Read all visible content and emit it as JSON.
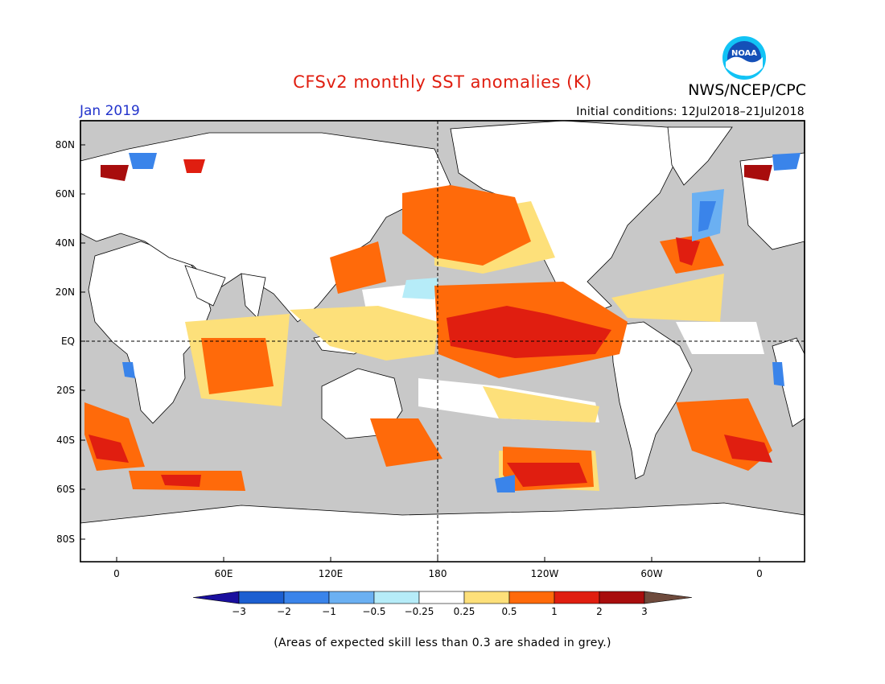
{
  "title": "CFSv2 monthly SST anomalies (K)",
  "agency": "NWS/NCEP/CPC",
  "logo_text": "NOAA",
  "valid_month": "Jan 2019",
  "initial_conditions": "Initial conditions: 12Jul2018–21Jul2018",
  "lat_labels": [
    "80N",
    "60N",
    "40N",
    "20N",
    "EQ",
    "20S",
    "40S",
    "60S",
    "80S"
  ],
  "lon_labels": [
    "0",
    "60E",
    "120E",
    "180",
    "120W",
    "60W",
    "0"
  ],
  "colorbar": {
    "labels": [
      "−3",
      "−2",
      "−1",
      "−0.5",
      "−0.25",
      "0.25",
      "0.5",
      "1",
      "2",
      "3"
    ],
    "colors": [
      "#1a0f9e",
      "#1c5fd1",
      "#3a84ea",
      "#6bb0f2",
      "#b6ecf8",
      "#ffffff",
      "#fde07a",
      "#ff6a0a",
      "#e01e10",
      "#a80d0d",
      "#6e4a3c"
    ]
  },
  "footnote": "(Areas of expected skill less than 0.3 are shaded in grey.)",
  "colors": {
    "title": "#e01e10",
    "valid_month": "#2233cc",
    "land": "#ffffff",
    "low_skill": "#c8c8c8"
  }
}
